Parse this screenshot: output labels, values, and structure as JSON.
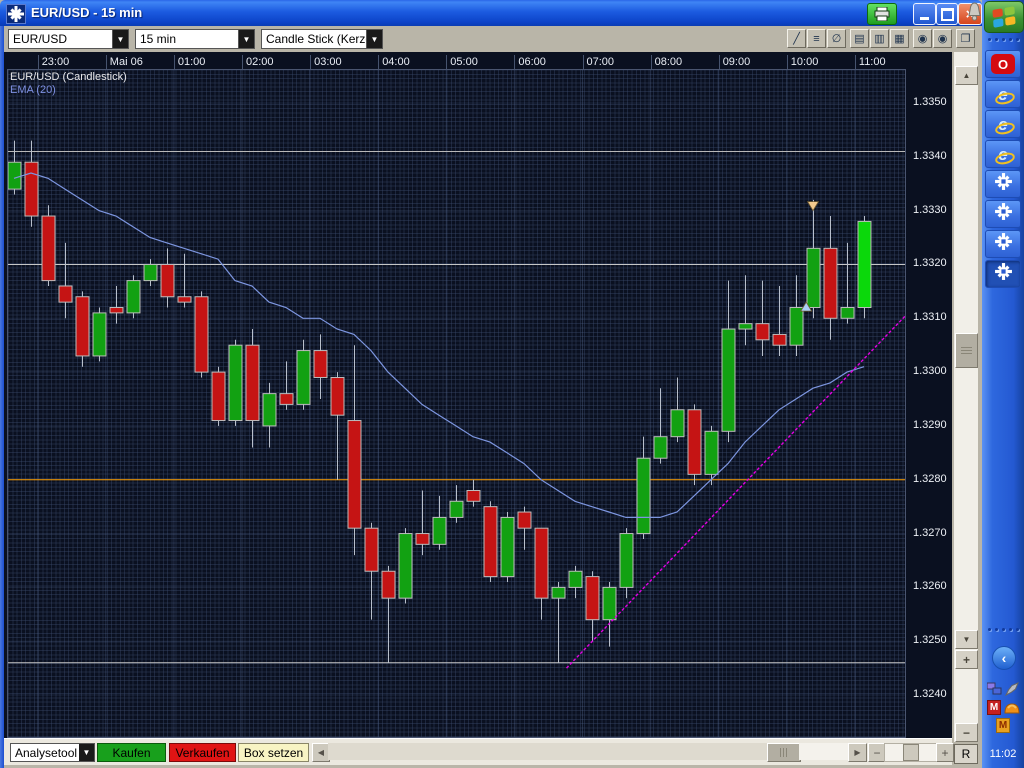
{
  "window": {
    "title": "EUR/USD - 15 min"
  },
  "glyphs": {
    "select_arrow": "▼",
    "scroll_up": "▲",
    "scroll_down": "▼",
    "scroll_left": "◀",
    "scroll_right": "▶",
    "plus": "+",
    "minus": "−",
    "close": "×",
    "chevron": "‹",
    "opera": "O",
    "ie": "e"
  },
  "toolbar": {
    "symbol": "EUR/USD",
    "interval": "15 min",
    "chart_type": "Candle Stick (Kerzen",
    "icons": [
      {
        "name": "trendline-tool-icon",
        "glyph": "╱",
        "gap": false
      },
      {
        "name": "horizontal-line-tool-icon",
        "glyph": "≡",
        "gap": false
      },
      {
        "name": "clear-drawings-icon",
        "glyph": "∅",
        "gap": false
      },
      {
        "name": "list-style-1-icon",
        "glyph": "▤",
        "gap": true
      },
      {
        "name": "list-style-2-icon",
        "glyph": "▥",
        "gap": false
      },
      {
        "name": "list-style-3-icon",
        "glyph": "▦",
        "gap": false
      },
      {
        "name": "sphere-1-icon",
        "glyph": "◉",
        "gap": true
      },
      {
        "name": "sphere-2-icon",
        "glyph": "◉",
        "gap": false
      },
      {
        "name": "cascade-windows-icon",
        "glyph": "❐",
        "gap": true
      }
    ]
  },
  "bottom_toolbar": {
    "analysetool": "Analysetool",
    "kaufen": "Kaufen",
    "verkaufen": "Verkaufen",
    "box_setzen": "Box setzen",
    "reset": "R"
  },
  "taskbar": {
    "clock": "11:02",
    "apps": [
      {
        "name": "opera",
        "active": false
      },
      {
        "name": "ie",
        "active": false
      },
      {
        "name": "ie",
        "active": false
      },
      {
        "name": "ie",
        "active": false
      },
      {
        "name": "chart-app",
        "active": false
      },
      {
        "name": "chart-app",
        "active": false
      },
      {
        "name": "chart-app",
        "active": false
      },
      {
        "name": "chart-app",
        "active": true
      }
    ],
    "tray": [
      "network",
      "rocket",
      "m-red",
      "hamster",
      "m-orange"
    ]
  },
  "chart_data": {
    "type": "candlestick",
    "title": "EUR/USD (Candlestick)",
    "indicator": "EMA (20)",
    "timeframe": "15 min",
    "x_axis": {
      "labels": [
        "23:00",
        "Mai 06",
        "01:00",
        "02:00",
        "03:00",
        "04:00",
        "05:00",
        "06:00",
        "07:00",
        "08:00",
        "09:00",
        "10:00",
        "11:00"
      ]
    },
    "y_axis": {
      "min": 1.324,
      "max": 1.335,
      "tick_step": 0.001,
      "labels": [
        "1.3350",
        "1.3340",
        "1.3330",
        "1.3320",
        "1.3310",
        "1.3300",
        "1.3290",
        "1.3280",
        "1.3270",
        "1.3260",
        "1.3250",
        "1.3240"
      ]
    },
    "candles": [
      [
        "22:30",
        1.3334,
        1.3343,
        1.3333,
        1.3339
      ],
      [
        "22:45",
        1.3339,
        1.3343,
        1.3327,
        1.3329
      ],
      [
        "23:00",
        1.3329,
        1.3331,
        1.3316,
        1.3317
      ],
      [
        "23:15",
        1.3316,
        1.3324,
        1.331,
        1.3313
      ],
      [
        "23:30",
        1.3314,
        1.3315,
        1.3301,
        1.3303
      ],
      [
        "23:45",
        1.3303,
        1.3312,
        1.3302,
        1.3311
      ],
      [
        "00:00",
        1.3312,
        1.3316,
        1.3309,
        1.3311
      ],
      [
        "00:15",
        1.3311,
        1.3318,
        1.331,
        1.3317
      ],
      [
        "00:30",
        1.3317,
        1.3321,
        1.3316,
        1.332
      ],
      [
        "00:45",
        1.332,
        1.3323,
        1.3312,
        1.3314
      ],
      [
        "01:00",
        1.3314,
        1.3322,
        1.3312,
        1.3313
      ],
      [
        "01:15",
        1.3314,
        1.3315,
        1.3299,
        1.33
      ],
      [
        "01:30",
        1.33,
        1.3301,
        1.329,
        1.3291
      ],
      [
        "01:45",
        1.3291,
        1.3306,
        1.329,
        1.3305
      ],
      [
        "02:00",
        1.3305,
        1.3308,
        1.3286,
        1.3291
      ],
      [
        "02:15",
        1.329,
        1.3298,
        1.3286,
        1.3296
      ],
      [
        "02:30",
        1.3296,
        1.3302,
        1.3293,
        1.3294
      ],
      [
        "02:45",
        1.3294,
        1.3306,
        1.3293,
        1.3304
      ],
      [
        "03:00",
        1.3304,
        1.3307,
        1.3295,
        1.3299
      ],
      [
        "03:15",
        1.3299,
        1.33,
        1.328,
        1.3292
      ],
      [
        "03:30",
        1.3291,
        1.3305,
        1.3266,
        1.3271
      ],
      [
        "03:45",
        1.3271,
        1.3272,
        1.3254,
        1.3263
      ],
      [
        "04:00",
        1.3263,
        1.3264,
        1.3246,
        1.3258
      ],
      [
        "04:15",
        1.3258,
        1.3271,
        1.3257,
        1.327
      ],
      [
        "04:30",
        1.327,
        1.3278,
        1.3266,
        1.3268
      ],
      [
        "04:45",
        1.3268,
        1.3277,
        1.3267,
        1.3273
      ],
      [
        "05:00",
        1.3273,
        1.3279,
        1.3272,
        1.3276
      ],
      [
        "05:15",
        1.3278,
        1.328,
        1.3275,
        1.3276
      ],
      [
        "05:30",
        1.3275,
        1.3276,
        1.3261,
        1.3262
      ],
      [
        "05:45",
        1.3262,
        1.3274,
        1.3261,
        1.3273
      ],
      [
        "06:00",
        1.3274,
        1.3275,
        1.3267,
        1.3271
      ],
      [
        "06:15",
        1.3271,
        1.3271,
        1.3254,
        1.3258
      ],
      [
        "06:30",
        1.3258,
        1.3261,
        1.3246,
        1.326
      ],
      [
        "06:45",
        1.326,
        1.3264,
        1.3258,
        1.3263
      ],
      [
        "07:00",
        1.3262,
        1.3263,
        1.325,
        1.3254
      ],
      [
        "07:15",
        1.3254,
        1.3261,
        1.3249,
        1.326
      ],
      [
        "07:30",
        1.326,
        1.3271,
        1.3258,
        1.327
      ],
      [
        "07:45",
        1.327,
        1.3288,
        1.3269,
        1.3284
      ],
      [
        "08:00",
        1.3284,
        1.3297,
        1.3283,
        1.3288
      ],
      [
        "08:15",
        1.3288,
        1.3299,
        1.3287,
        1.3293
      ],
      [
        "08:30",
        1.3293,
        1.3294,
        1.3279,
        1.3281
      ],
      [
        "08:45",
        1.3281,
        1.329,
        1.3279,
        1.3289
      ],
      [
        "09:00",
        1.3289,
        1.3317,
        1.3287,
        1.3308
      ],
      [
        "09:15",
        1.3308,
        1.3318,
        1.3305,
        1.3309
      ],
      [
        "09:30",
        1.3309,
        1.3317,
        1.3303,
        1.3306
      ],
      [
        "09:45",
        1.3307,
        1.3316,
        1.3303,
        1.3305
      ],
      [
        "10:00",
        1.3305,
        1.3318,
        1.3303,
        1.3312
      ],
      [
        "10:15",
        1.3312,
        1.3332,
        1.331,
        1.3323
      ],
      [
        "10:30",
        1.3323,
        1.3329,
        1.3306,
        1.331
      ],
      [
        "10:45",
        1.331,
        1.3324,
        1.3309,
        1.3312
      ],
      [
        "11:00",
        1.3312,
        1.3329,
        1.331,
        1.3328
      ]
    ],
    "ema_values": [
      1.3336,
      1.3337,
      1.3336,
      1.3334,
      1.3332,
      1.333,
      1.3329,
      1.3327,
      1.3325,
      1.3324,
      1.3323,
      1.3322,
      1.3321,
      1.3317,
      1.3316,
      1.3313,
      1.3312,
      1.331,
      1.331,
      1.3308,
      1.3307,
      1.3304,
      1.33,
      1.3297,
      1.3294,
      1.3292,
      1.329,
      1.3288,
      1.3287,
      1.3285,
      1.3283,
      1.328,
      1.3278,
      1.3276,
      1.3275,
      1.3274,
      1.3273,
      1.3273,
      1.3273,
      1.3274,
      1.3277,
      1.328,
      1.3283,
      1.3287,
      1.329,
      1.3293,
      1.3295,
      1.3297,
      1.3298,
      1.33,
      1.3301
    ],
    "support_resistance_lines": [
      {
        "price": 1.3341,
        "color": "#b9b9b9"
      },
      {
        "price": 1.332,
        "color": "#c6c6c6"
      },
      {
        "price": 1.328,
        "color": "#ffa000"
      },
      {
        "price": 1.3246,
        "color": "#c6c6c6"
      }
    ],
    "trendline": {
      "from_index": 32.5,
      "from_price": 1.3245,
      "to_index": 52.6,
      "to_price": 1.3311,
      "color": "#e400e4",
      "style": "dashed"
    },
    "markers": [
      {
        "index": 47,
        "price": 1.333,
        "direction": "down",
        "color": "#f2c98d"
      },
      {
        "index": 46.6,
        "price": 1.3313,
        "direction": "up",
        "color": "#a9cdf5"
      }
    ],
    "colors": {
      "up": "#12a112",
      "down": "#c51414",
      "current": "#0bd80b",
      "wick": "#b9c0cc",
      "ema": "#7d96e0",
      "background": "#0a1020",
      "grid": "#3a4a6c"
    }
  }
}
